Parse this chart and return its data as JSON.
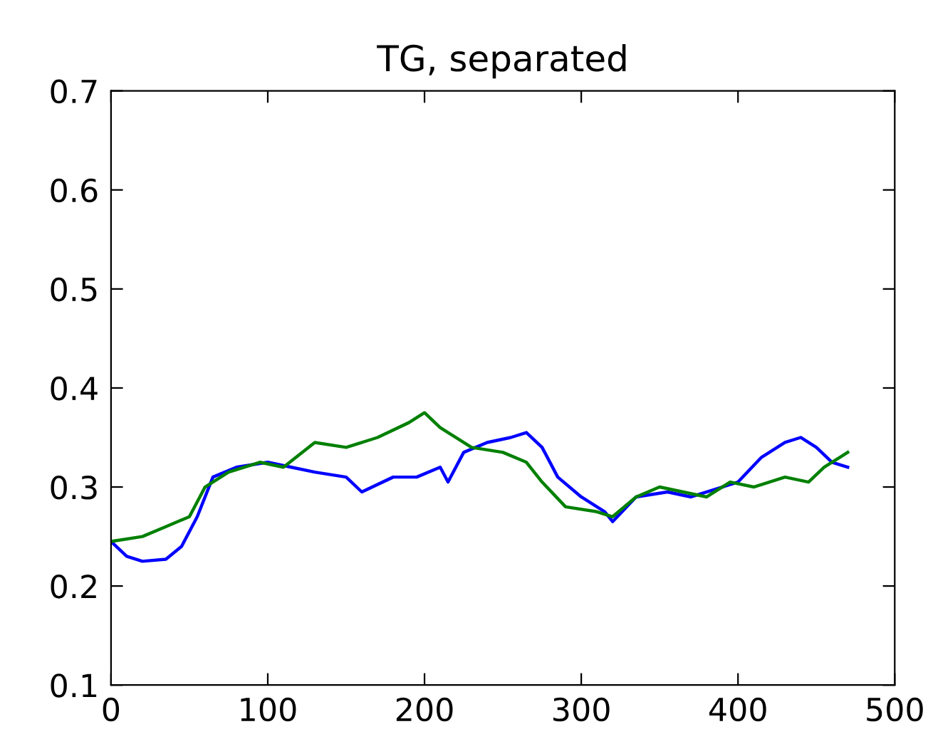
{
  "chart_data": {
    "type": "line",
    "title": "TG, separated",
    "xlim": [
      0,
      500
    ],
    "xticks": [
      0,
      100,
      200,
      300,
      400,
      500
    ],
    "ylim": [
      0.1,
      0.7
    ],
    "yticks": [
      0.1,
      0.2,
      0.3,
      0.4,
      0.5,
      0.6,
      0.7
    ],
    "grid": false,
    "series": [
      {
        "color": "#0000ff",
        "x": [
          0,
          10,
          20,
          35,
          45,
          55,
          65,
          80,
          100,
          115,
          130,
          150,
          160,
          180,
          195,
          210,
          215,
          225,
          240,
          255,
          265,
          275,
          285,
          300,
          315,
          320,
          335,
          355,
          370,
          390,
          400,
          415,
          430,
          440,
          450,
          460,
          470
        ],
        "values": [
          0.245,
          0.23,
          0.225,
          0.227,
          0.24,
          0.27,
          0.31,
          0.32,
          0.325,
          0.32,
          0.315,
          0.31,
          0.295,
          0.31,
          0.31,
          0.32,
          0.305,
          0.335,
          0.345,
          0.35,
          0.355,
          0.34,
          0.31,
          0.29,
          0.275,
          0.265,
          0.29,
          0.295,
          0.29,
          0.3,
          0.305,
          0.33,
          0.345,
          0.35,
          0.34,
          0.325,
          0.32
        ]
      },
      {
        "color": "#008000",
        "x": [
          0,
          20,
          35,
          50,
          60,
          75,
          95,
          110,
          130,
          150,
          170,
          190,
          200,
          210,
          230,
          250,
          265,
          275,
          290,
          310,
          320,
          335,
          350,
          365,
          380,
          395,
          410,
          430,
          445,
          455,
          465,
          470
        ],
        "values": [
          0.245,
          0.25,
          0.26,
          0.27,
          0.3,
          0.315,
          0.325,
          0.32,
          0.345,
          0.34,
          0.35,
          0.365,
          0.375,
          0.36,
          0.34,
          0.335,
          0.325,
          0.305,
          0.28,
          0.275,
          0.27,
          0.29,
          0.3,
          0.295,
          0.29,
          0.305,
          0.3,
          0.31,
          0.305,
          0.32,
          0.33,
          0.335
        ]
      }
    ]
  }
}
